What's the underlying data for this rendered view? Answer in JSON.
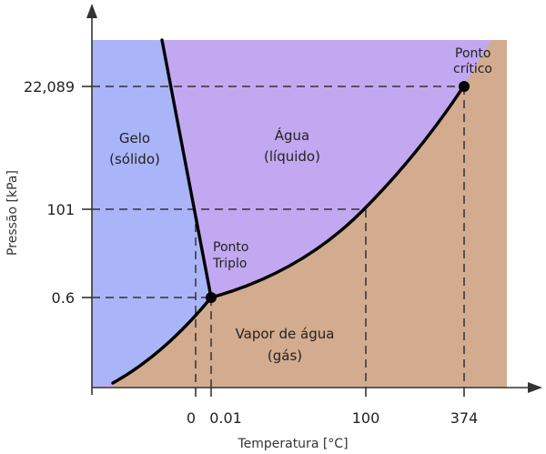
{
  "colors": {
    "solid": "#aab4f8",
    "liquid": "#c2a8f0",
    "gas": "#d3ab8e",
    "curve": "#000000",
    "axis": "#333333"
  },
  "regions": {
    "solid": {
      "line1": "Gelo",
      "line2": "(sólido)"
    },
    "liquid": {
      "line1": "Água",
      "line2": "(líquido)"
    },
    "gas": {
      "line1": "Vapor de água",
      "line2": "(gás)"
    }
  },
  "points": {
    "triple": {
      "line1": "Ponto",
      "line2": "Triplo"
    },
    "critical": {
      "line1": "Ponto",
      "line2": "crítico"
    }
  },
  "axes": {
    "x_title": "Temperatura [°C]",
    "y_title": "Pressão [kPa]",
    "x_ticks": [
      "0",
      "0.01",
      "100",
      "374"
    ],
    "y_ticks": [
      "22,089",
      "101",
      "0.6"
    ]
  }
}
